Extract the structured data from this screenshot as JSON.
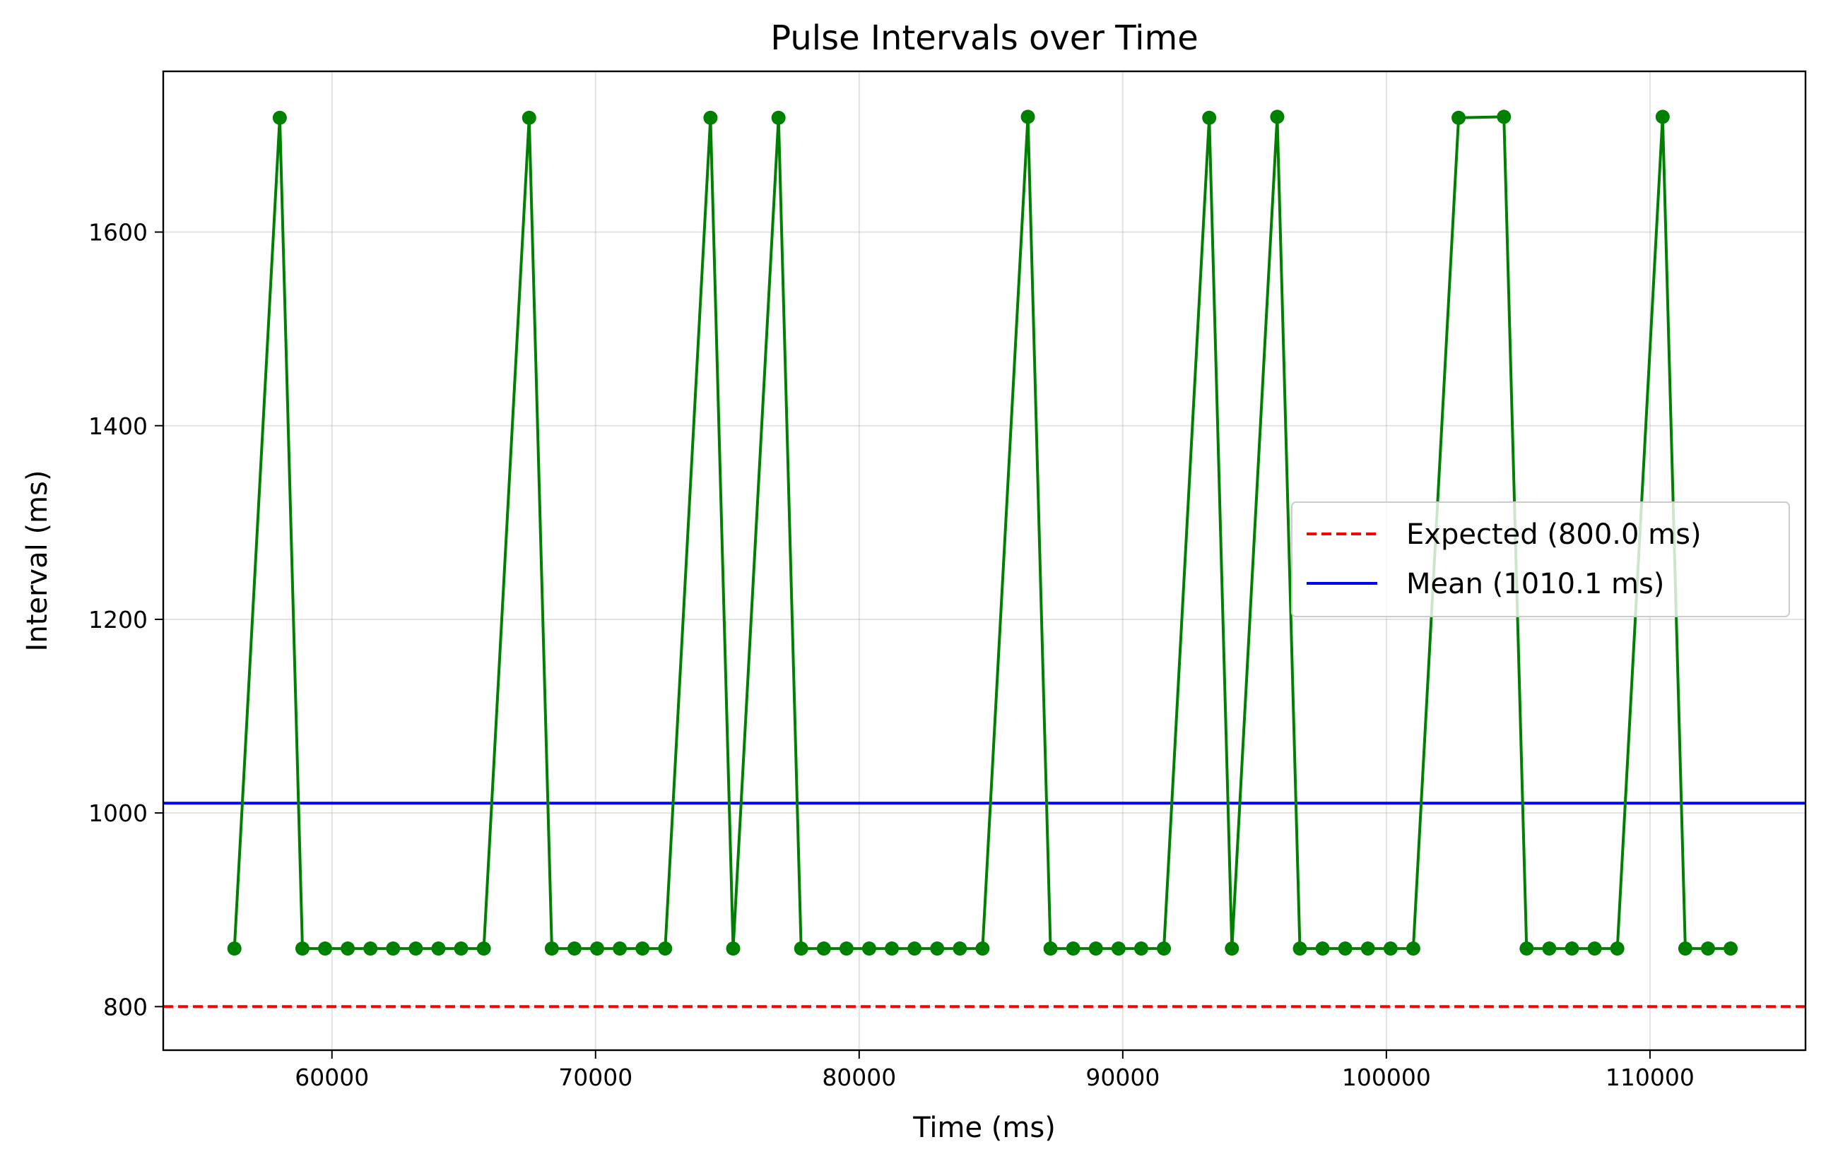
{
  "chart_data": {
    "type": "line",
    "title": "Pulse Intervals over Time",
    "xlabel": "Time (ms)",
    "ylabel": "Interval (ms)",
    "xlim": [
      53600,
      115900
    ],
    "ylim": [
      755,
      1766
    ],
    "xticks": [
      60000,
      70000,
      80000,
      90000,
      100000,
      110000
    ],
    "yticks": [
      800,
      1000,
      1200,
      1400,
      1600
    ],
    "grid": true,
    "legend_position": "center-right",
    "colors": {
      "series": "#008000",
      "expected": "#ff0000",
      "mean": "#0000ff"
    },
    "series": [
      {
        "x": [
          56300,
          58020,
          58880,
          59740,
          60600,
          61460,
          62320,
          63180,
          64040,
          64900,
          65760,
          67480,
          68340,
          69200,
          70060,
          70920,
          71780,
          72640,
          74360,
          75220,
          76940,
          77800,
          78660,
          79520,
          80380,
          81240,
          82100,
          82960,
          83820,
          84680,
          86400,
          87260,
          88120,
          88980,
          89840,
          90700,
          91560,
          93280,
          94140,
          95860,
          96720,
          97580,
          98440,
          99300,
          100160,
          101020,
          102740,
          104460,
          105320,
          106180,
          107040,
          107900,
          108760,
          110480,
          111340,
          112200,
          113060
        ],
        "y": [
          860,
          1718,
          860,
          860,
          860,
          860,
          860,
          860,
          860,
          860,
          860,
          1718,
          860,
          860,
          860,
          860,
          860,
          860,
          1718,
          860,
          1718,
          860,
          860,
          860,
          860,
          860,
          860,
          860,
          860,
          860,
          1719,
          860,
          860,
          860,
          860,
          860,
          860,
          1718,
          860,
          1719,
          860,
          860,
          860,
          860,
          860,
          860,
          1718,
          1719,
          860,
          860,
          860,
          860,
          860,
          1719,
          860,
          860,
          860
        ]
      }
    ],
    "reference_lines": [
      {
        "name": "Expected (800.0 ms)",
        "y": 800,
        "style": "dashed"
      },
      {
        "name": "Mean (1010.1 ms)",
        "y": 1010.1,
        "style": "solid"
      }
    ]
  }
}
